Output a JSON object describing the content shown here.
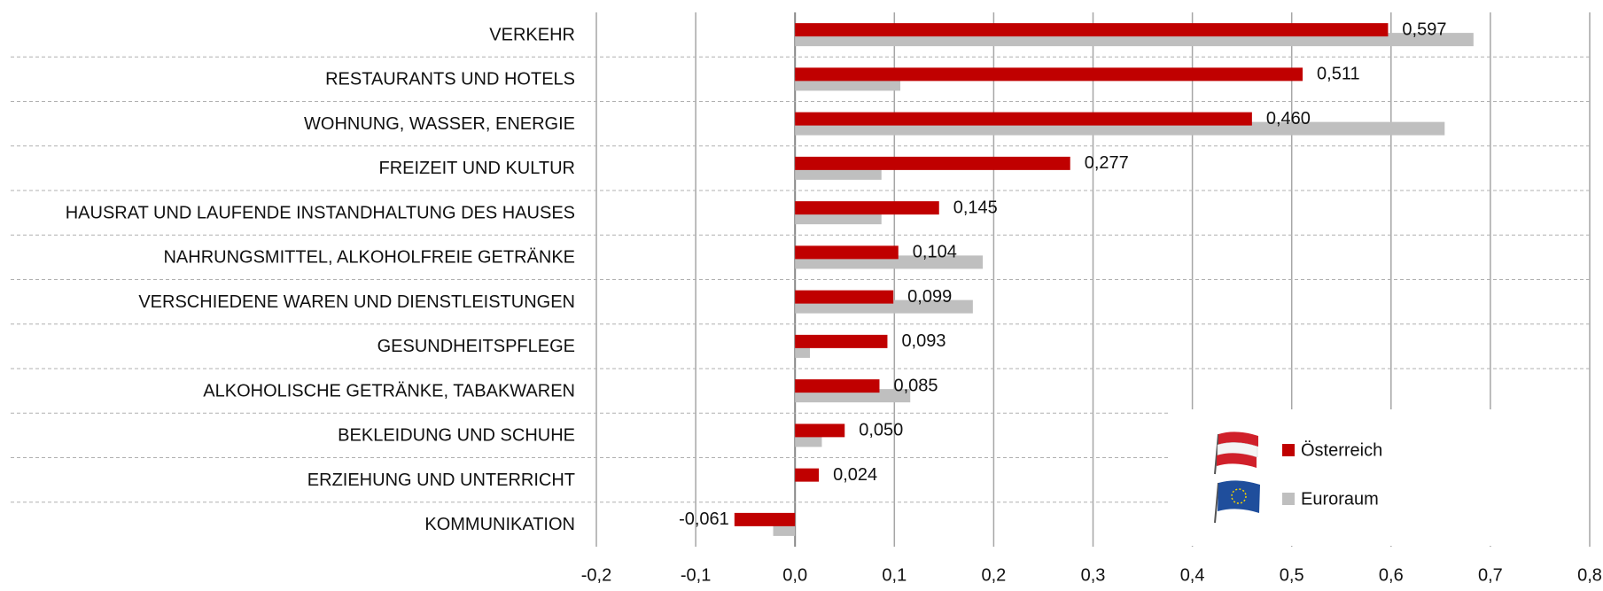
{
  "chart_data": {
    "type": "hbar",
    "categories": [
      "VERKEHR",
      "RESTAURANTS UND HOTELS",
      "WOHNUNG, WASSER, ENERGIE",
      "FREIZEIT UND KULTUR",
      "HAUSRAT UND LAUFENDE INSTANDHALTUNG DES HAUSES",
      "NAHRUNGSMITTEL, ALKOHOLFREIE GETRÄNKE",
      "VERSCHIEDENE WAREN UND DIENSTLEISTUNGEN",
      "GESUNDHEITSPFLEGE",
      "ALKOHOLISCHE GETRÄNKE, TABAKWAREN",
      "BEKLEIDUNG UND SCHUHE",
      "ERZIEHUNG UND UNTERRICHT",
      "KOMMUNIKATION"
    ],
    "series": [
      {
        "name": "Österreich",
        "color": "#c00000",
        "values": [
          0.597,
          0.511,
          0.46,
          0.277,
          0.145,
          0.104,
          0.099,
          0.093,
          0.085,
          0.05,
          0.024,
          -0.061
        ],
        "value_labels": [
          "0,597",
          "0,511",
          "0,460",
          "0,277",
          "0,145",
          "0,104",
          "0,099",
          "0,093",
          "0,085",
          "0,050",
          "0,024",
          "-0,061"
        ]
      },
      {
        "name": "Euroraum",
        "color": "#bfbfbf",
        "values": [
          0.683,
          0.106,
          0.654,
          0.087,
          0.087,
          0.189,
          0.179,
          0.015,
          0.116,
          0.027,
          0,
          -0.022
        ]
      }
    ],
    "xlim": [
      -0.2,
      0.8
    ],
    "xticks": [
      {
        "value": -0.2,
        "label": "-0,2"
      },
      {
        "value": -0.1,
        "label": "-0,1"
      },
      {
        "value": 0,
        "label": "0,0"
      },
      {
        "value": 0.1,
        "label": "0,1"
      },
      {
        "value": 0.2,
        "label": "0,2"
      },
      {
        "value": 0.3,
        "label": "0,3"
      },
      {
        "value": 0.4,
        "label": "0,4"
      },
      {
        "value": 0.5,
        "label": "0,5"
      },
      {
        "value": 0.6,
        "label": "0,6"
      },
      {
        "value": 0.7,
        "label": "0,7"
      },
      {
        "value": 0.8,
        "label": "0,8"
      }
    ],
    "grid": true,
    "legend": "lower right"
  }
}
